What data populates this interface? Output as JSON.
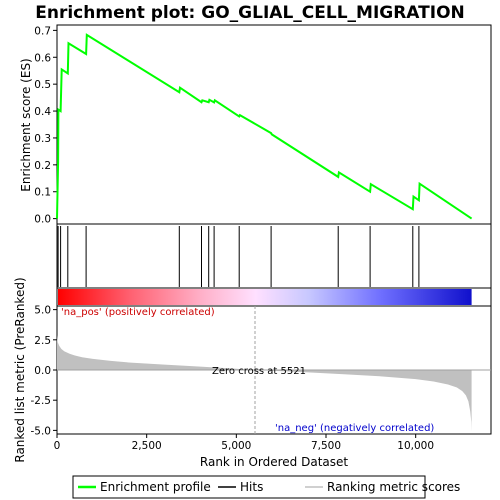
{
  "chart_data": {
    "type": "line",
    "title": "Enrichment plot: GO_GLIAL_CELL_MIGRATION",
    "top_panel": {
      "ylabel": "Enrichment score (ES)",
      "ylim": [
        -0.02,
        0.72
      ],
      "yticks": [
        0.0,
        0.1,
        0.2,
        0.3,
        0.4,
        0.5,
        0.6,
        0.7
      ],
      "ytick_labels": [
        "0.0",
        "0.1",
        "0.2",
        "0.3",
        "0.4",
        "0.5",
        "0.6",
        "0.7"
      ],
      "series": [
        {
          "name": "Enrichment profile",
          "color": "#00ff00",
          "x": [
            0,
            30,
            40,
            100,
            130,
            300,
            320,
            810,
            830,
            3410,
            3430,
            4030,
            4050,
            4230,
            4250,
            4380,
            4400,
            5080,
            5100,
            5970,
            5990,
            7840,
            7860,
            8730,
            8750,
            9920,
            9940,
            10090,
            10110,
            11560
          ],
          "y": [
            0.0,
            0.21,
            0.405,
            0.4,
            0.555,
            0.54,
            0.652,
            0.612,
            0.683,
            0.47,
            0.487,
            0.433,
            0.44,
            0.433,
            0.442,
            0.432,
            0.44,
            0.38,
            0.385,
            0.318,
            0.313,
            0.155,
            0.172,
            0.1,
            0.128,
            0.035,
            0.082,
            0.068,
            0.13,
            0.0
          ]
        }
      ]
    },
    "hits": {
      "name": "Hits",
      "color": "#000000",
      "x": [
        30,
        100,
        300,
        810,
        3410,
        4030,
        4230,
        4380,
        5080,
        5970,
        7840,
        8730,
        9920,
        10090
      ]
    },
    "bottom_panel": {
      "ylabel": "Ranked list metric (PreRanked)",
      "xlabel": "Rank in Ordered Dataset",
      "ylim": [
        -5.3,
        5.3
      ],
      "yticks": [
        -5.0,
        -2.5,
        0.0,
        2.5,
        5.0
      ],
      "ytick_labels": [
        "-5.0",
        "-2.5",
        "0.0",
        "2.5",
        "5.0"
      ],
      "xlim": [
        0,
        12100
      ],
      "xticks": [
        0,
        2500,
        5000,
        7500,
        10000
      ],
      "xtick_labels": [
        "0",
        "2,500",
        "5,000",
        "7,500",
        "10,000"
      ],
      "series_name": "Ranking metric scores",
      "metric_curve": {
        "x": [
          0,
          20,
          60,
          120,
          200,
          350,
          500,
          700,
          1000,
          1500,
          2000,
          3000,
          4000,
          5000,
          5521,
          6000,
          7000,
          8000,
          9000,
          10000,
          10500,
          10900,
          11150,
          11300,
          11400,
          11470,
          11520,
          11550,
          11560
        ],
        "y": [
          2.9,
          2.3,
          2.0,
          1.75,
          1.55,
          1.35,
          1.2,
          1.05,
          0.92,
          0.75,
          0.62,
          0.45,
          0.28,
          0.1,
          0.0,
          -0.07,
          -0.2,
          -0.35,
          -0.52,
          -0.75,
          -0.95,
          -1.2,
          -1.45,
          -1.75,
          -2.1,
          -2.6,
          -3.4,
          -4.3,
          -5.1
        ]
      },
      "zero_cross_label": "Zero cross at 5521",
      "zero_cross_x": 5521,
      "pos_label": "'na_pos' (positively correlated)",
      "neg_label": "'na_neg' (negatively correlated)",
      "pos_color": "#cc0000",
      "neg_color": "#0000cc"
    },
    "colorbar": {
      "n_items": 11560,
      "stops": [
        {
          "x": 0,
          "color": "#ff0000"
        },
        {
          "x": 2000,
          "color": "#ff6070"
        },
        {
          "x": 4000,
          "color": "#ffb0c8"
        },
        {
          "x": 5520,
          "color": "#ffe0ff"
        },
        {
          "x": 7000,
          "color": "#c8c8ff"
        },
        {
          "x": 9000,
          "color": "#7070ff"
        },
        {
          "x": 11560,
          "color": "#1010cc"
        }
      ]
    },
    "legend": [
      {
        "label": "Enrichment profile",
        "color": "#00ff00"
      },
      {
        "label": "Hits",
        "color": "#000000"
      },
      {
        "label": "Ranking metric scores",
        "color": "#c0c0c0"
      }
    ]
  }
}
